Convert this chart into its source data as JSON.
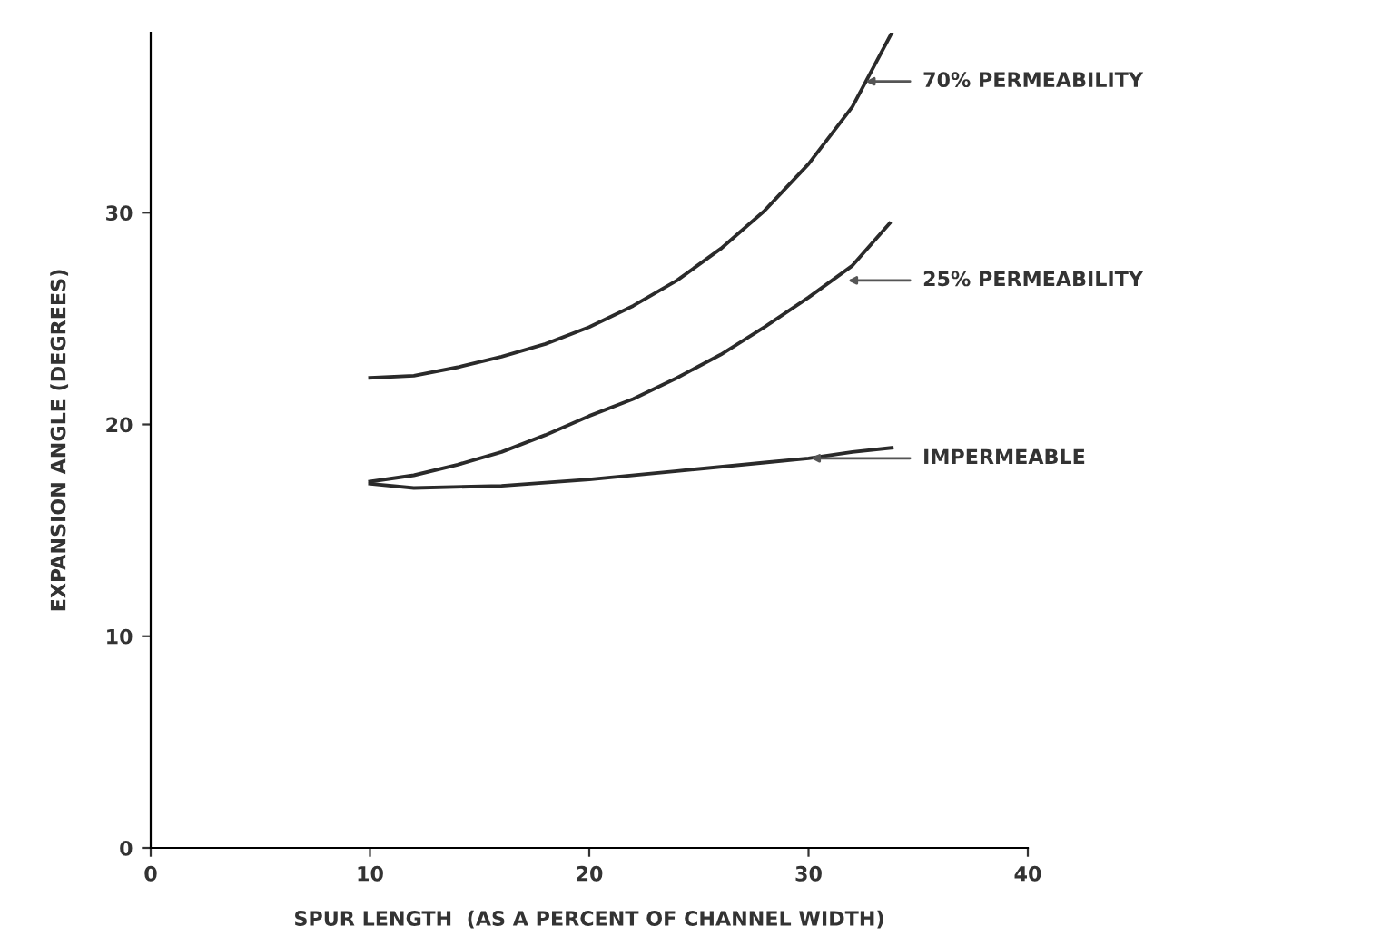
{
  "chart_data": {
    "type": "line",
    "xlabel": "SPUR LENGTH  (AS A PERCENT OF CHANNEL WIDTH)",
    "ylabel": "EXPANSION ANGLE (DEGREES)",
    "xlim": [
      0,
      40
    ],
    "ylim": [
      0,
      38.5
    ],
    "xticks": [
      0,
      10,
      20,
      30,
      40
    ],
    "yticks": [
      0,
      10,
      20,
      30
    ],
    "grid": false,
    "legend": false,
    "marker": "none",
    "line_style": "solid",
    "series": [
      {
        "color": "#2a2a2a",
        "x": [
          10,
          12,
          14,
          16,
          18,
          20,
          22,
          24,
          26,
          28,
          30,
          32,
          33.8
        ],
        "values": [
          22.2,
          22.3,
          22.7,
          23.2,
          23.8,
          24.6,
          25.6,
          26.8,
          28.3,
          30.1,
          32.3,
          35.0,
          38.5
        ]
      },
      {
        "color": "#2a2a2a",
        "x": [
          10,
          12,
          14,
          16,
          18,
          20,
          22,
          24,
          26,
          28,
          30,
          32,
          33.7
        ],
        "values": [
          17.3,
          17.6,
          18.1,
          18.7,
          19.5,
          20.4,
          21.2,
          22.2,
          23.3,
          24.6,
          26.0,
          27.5,
          29.5
        ]
      },
      {
        "color": "#2a2a2a",
        "x": [
          10,
          12,
          16,
          20,
          24,
          28,
          30,
          32,
          33.8
        ],
        "values": [
          17.2,
          17.0,
          17.1,
          17.4,
          17.8,
          18.2,
          18.4,
          18.7,
          18.9
        ]
      }
    ],
    "annotations": [
      {
        "text": "70% PERMEABILITY",
        "x": 32.6,
        "y": 36.2
      },
      {
        "text": "25% PERMEABILITY",
        "x": 31.8,
        "y": 26.8
      },
      {
        "text": "IMPERMEABLE",
        "x": 30.1,
        "y": 18.4
      }
    ]
  }
}
